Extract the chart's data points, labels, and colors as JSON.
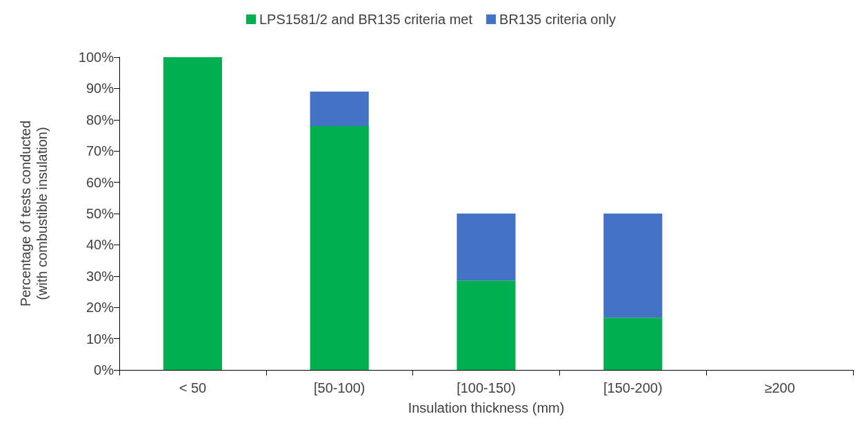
{
  "chart_data": {
    "type": "bar",
    "stacked": true,
    "xlabel": "Insulation thickness (mm)",
    "ylabel": "Percentage of tests conducted\n(with combustible insulation)",
    "categories": [
      "< 50",
      "[50-100)",
      "[100-150)",
      "[150-200)",
      "≥200"
    ],
    "series": [
      {
        "name": "LPS1581/2 and BR135 criteria met",
        "color": "#00b050",
        "values": [
          100,
          78,
          28.6,
          16.7,
          0
        ]
      },
      {
        "name": "BR135 criteria only",
        "color": "#4472c4",
        "values": [
          0,
          11,
          21.4,
          33.3,
          0
        ]
      }
    ],
    "ylim": [
      0,
      100
    ],
    "yticks": [
      {
        "value": 0,
        "label": "0%"
      },
      {
        "value": 10,
        "label": "10%"
      },
      {
        "value": 20,
        "label": "20%"
      },
      {
        "value": 30,
        "label": "30%"
      },
      {
        "value": 40,
        "label": "40%"
      },
      {
        "value": 50,
        "label": "50%"
      },
      {
        "value": 60,
        "label": "60%"
      },
      {
        "value": 70,
        "label": "70%"
      },
      {
        "value": 80,
        "label": "80%"
      },
      {
        "value": 90,
        "label": "90%"
      },
      {
        "value": 100,
        "label": "100%"
      }
    ],
    "grid": false,
    "legend": "top"
  }
}
